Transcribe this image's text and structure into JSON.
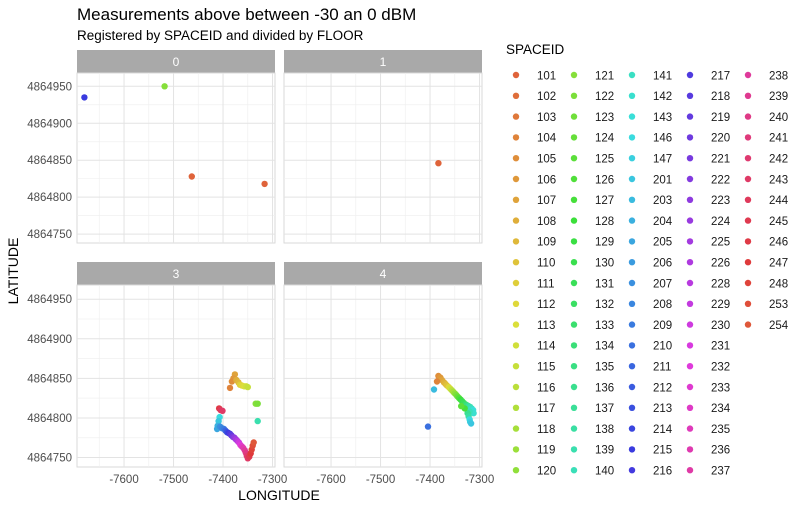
{
  "chart_data": {
    "type": "scatter",
    "title": "Measurements above between -30 an 0 dBM",
    "subtitle": "Registered by SPACEID and divided by FLOOR",
    "xlabel": "LONGITUDE",
    "ylabel": "LATITUDE",
    "xlim": [
      -7695,
      -7295
    ],
    "ylim": [
      4864738,
      4864968
    ],
    "x_ticks": [
      -7600,
      -7500,
      -7400,
      -7300
    ],
    "y_ticks": [
      4864750,
      4864800,
      4864850,
      4864900,
      4864950
    ],
    "x_tick_labels": [
      "-7600",
      "-7500",
      "-7400",
      "-7300"
    ],
    "y_tick_labels": [
      "4864750",
      "4864800",
      "4864850",
      "4864900",
      "4864950"
    ],
    "grid": true,
    "legend": {
      "title": "SPACEID",
      "position": "right"
    },
    "spaceids": [
      "101",
      "102",
      "103",
      "104",
      "105",
      "106",
      "107",
      "108",
      "109",
      "110",
      "111",
      "112",
      "113",
      "114",
      "115",
      "116",
      "117",
      "118",
      "119",
      "120",
      "121",
      "122",
      "123",
      "124",
      "125",
      "126",
      "127",
      "128",
      "129",
      "130",
      "131",
      "132",
      "133",
      "134",
      "135",
      "136",
      "137",
      "138",
      "139",
      "140",
      "141",
      "142",
      "143",
      "146",
      "147",
      "201",
      "203",
      "204",
      "205",
      "206",
      "207",
      "208",
      "209",
      "210",
      "211",
      "212",
      "213",
      "214",
      "215",
      "216",
      "217",
      "218",
      "219",
      "220",
      "221",
      "222",
      "223",
      "224",
      "225",
      "226",
      "228",
      "229",
      "230",
      "231",
      "232",
      "233",
      "234",
      "235",
      "236",
      "237",
      "238",
      "239",
      "240",
      "241",
      "242",
      "243",
      "244",
      "245",
      "246",
      "247",
      "248",
      "253",
      "254"
    ],
    "facets": [
      {
        "label": "0",
        "points": [
          {
            "x": -7680,
            "y": 4864935,
            "id": "215"
          },
          {
            "x": -7518,
            "y": 4864950,
            "id": "121"
          },
          {
            "x": -7463,
            "y": 4864828,
            "id": "101"
          },
          {
            "x": -7316,
            "y": 4864818,
            "id": "101"
          }
        ]
      },
      {
        "label": "1",
        "points": [
          {
            "x": -7383,
            "y": 4864846,
            "id": "101"
          }
        ]
      },
      {
        "label": "3",
        "points": [
          {
            "x": -7376,
            "y": 4864855,
            "id": "107"
          },
          {
            "x": -7379,
            "y": 4864850,
            "id": "106"
          },
          {
            "x": -7382,
            "y": 4864846,
            "id": "105"
          },
          {
            "x": -7373,
            "y": 4864848,
            "id": "108"
          },
          {
            "x": -7369,
            "y": 4864845,
            "id": "109"
          },
          {
            "x": -7366,
            "y": 4864842,
            "id": "111"
          },
          {
            "x": -7362,
            "y": 4864841,
            "id": "112"
          },
          {
            "x": -7357,
            "y": 4864840,
            "id": "113"
          },
          {
            "x": -7353,
            "y": 4864840,
            "id": "114"
          },
          {
            "x": -7350,
            "y": 4864839,
            "id": "115"
          },
          {
            "x": -7386,
            "y": 4864838,
            "id": "104"
          },
          {
            "x": -7334,
            "y": 4864818,
            "id": "121"
          },
          {
            "x": -7330,
            "y": 4864818,
            "id": "122"
          },
          {
            "x": -7330,
            "y": 4864796,
            "id": "139"
          },
          {
            "x": -7408,
            "y": 4864812,
            "id": "246"
          },
          {
            "x": -7405,
            "y": 4864810,
            "id": "244"
          },
          {
            "x": -7401,
            "y": 4864809,
            "id": "243"
          },
          {
            "x": -7407,
            "y": 4864801,
            "id": "146"
          },
          {
            "x": -7409,
            "y": 4864796,
            "id": "201"
          },
          {
            "x": -7411,
            "y": 4864790,
            "id": "204"
          },
          {
            "x": -7412,
            "y": 4864786,
            "id": "205"
          },
          {
            "x": -7406,
            "y": 4864789,
            "id": "207"
          },
          {
            "x": -7402,
            "y": 4864787,
            "id": "208"
          },
          {
            "x": -7398,
            "y": 4864786,
            "id": "209"
          },
          {
            "x": -7395,
            "y": 4864784,
            "id": "211"
          },
          {
            "x": -7392,
            "y": 4864782,
            "id": "213"
          },
          {
            "x": -7389,
            "y": 4864781,
            "id": "215"
          },
          {
            "x": -7386,
            "y": 4864780,
            "id": "217"
          },
          {
            "x": -7383,
            "y": 4864778,
            "id": "219"
          },
          {
            "x": -7380,
            "y": 4864776,
            "id": "221"
          },
          {
            "x": -7377,
            "y": 4864775,
            "id": "223"
          },
          {
            "x": -7374,
            "y": 4864773,
            "id": "225"
          },
          {
            "x": -7371,
            "y": 4864771,
            "id": "228"
          },
          {
            "x": -7368,
            "y": 4864769,
            "id": "230"
          },
          {
            "x": -7365,
            "y": 4864766,
            "id": "232"
          },
          {
            "x": -7362,
            "y": 4864764,
            "id": "234"
          },
          {
            "x": -7359,
            "y": 4864762,
            "id": "236"
          },
          {
            "x": -7356,
            "y": 4864759,
            "id": "238"
          },
          {
            "x": -7354,
            "y": 4864756,
            "id": "240"
          },
          {
            "x": -7352,
            "y": 4864752,
            "id": "242"
          },
          {
            "x": -7350,
            "y": 4864749,
            "id": "243"
          },
          {
            "x": -7347,
            "y": 4864751,
            "id": "245"
          },
          {
            "x": -7344,
            "y": 4864755,
            "id": "247"
          },
          {
            "x": -7342,
            "y": 4864760,
            "id": "248"
          },
          {
            "x": -7340,
            "y": 4864765,
            "id": "253"
          },
          {
            "x": -7338,
            "y": 4864769,
            "id": "254"
          }
        ]
      },
      {
        "label": "4",
        "points": [
          {
            "x": -7383,
            "y": 4864853,
            "id": "105"
          },
          {
            "x": -7379,
            "y": 4864851,
            "id": "106"
          },
          {
            "x": -7376,
            "y": 4864848,
            "id": "107"
          },
          {
            "x": -7386,
            "y": 4864846,
            "id": "104"
          },
          {
            "x": -7372,
            "y": 4864845,
            "id": "108"
          },
          {
            "x": -7369,
            "y": 4864843,
            "id": "109"
          },
          {
            "x": -7366,
            "y": 4864841,
            "id": "110"
          },
          {
            "x": -7362,
            "y": 4864839,
            "id": "112"
          },
          {
            "x": -7359,
            "y": 4864837,
            "id": "114"
          },
          {
            "x": -7356,
            "y": 4864835,
            "id": "116"
          },
          {
            "x": -7353,
            "y": 4864833,
            "id": "118"
          },
          {
            "x": -7350,
            "y": 4864831,
            "id": "120"
          },
          {
            "x": -7347,
            "y": 4864829,
            "id": "122"
          },
          {
            "x": -7344,
            "y": 4864827,
            "id": "124"
          },
          {
            "x": -7341,
            "y": 4864825,
            "id": "126"
          },
          {
            "x": -7338,
            "y": 4864823,
            "id": "128"
          },
          {
            "x": -7335,
            "y": 4864821,
            "id": "130"
          },
          {
            "x": -7332,
            "y": 4864819,
            "id": "131"
          },
          {
            "x": -7328,
            "y": 4864817,
            "id": "133"
          },
          {
            "x": -7325,
            "y": 4864816,
            "id": "135"
          },
          {
            "x": -7322,
            "y": 4864815,
            "id": "137"
          },
          {
            "x": -7319,
            "y": 4864814,
            "id": "139"
          },
          {
            "x": -7316,
            "y": 4864812,
            "id": "141"
          },
          {
            "x": -7313,
            "y": 4864810,
            "id": "143"
          },
          {
            "x": -7312,
            "y": 4864806,
            "id": "142"
          },
          {
            "x": -7320,
            "y": 4864808,
            "id": "140"
          },
          {
            "x": -7324,
            "y": 4864806,
            "id": "136"
          },
          {
            "x": -7322,
            "y": 4864802,
            "id": "138"
          },
          {
            "x": -7320,
            "y": 4864798,
            "id": "146"
          },
          {
            "x": -7319,
            "y": 4864795,
            "id": "147"
          },
          {
            "x": -7317,
            "y": 4864793,
            "id": "201"
          },
          {
            "x": -7330,
            "y": 4864812,
            "id": "127"
          },
          {
            "x": -7337,
            "y": 4864815,
            "id": "125"
          },
          {
            "x": -7392,
            "y": 4864836,
            "id": "203"
          },
          {
            "x": -7404,
            "y": 4864789,
            "id": "210"
          }
        ]
      }
    ]
  }
}
